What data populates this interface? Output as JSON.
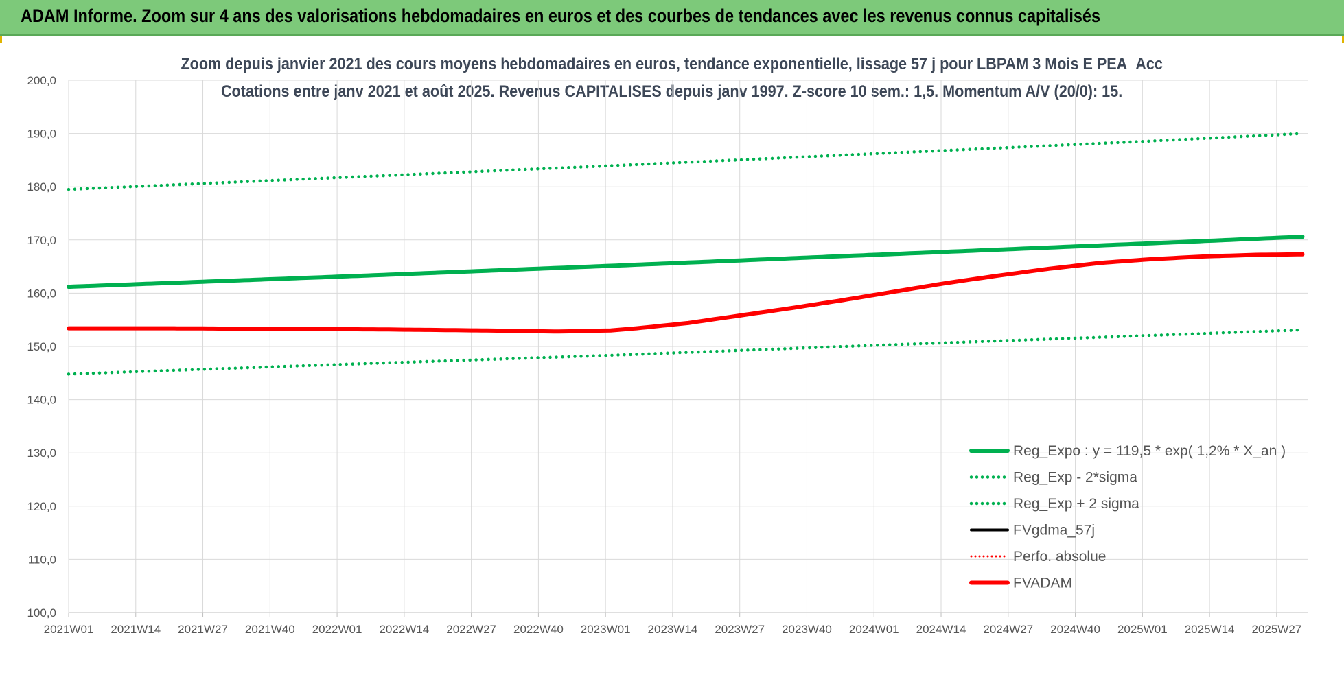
{
  "banner": {
    "title": "ADAM Informe. Zoom sur 4 ans des valorisations hebdomadaires en euros et des courbes de tendances avec les revenus connus capitalisés"
  },
  "chart_data": {
    "type": "line",
    "title": "Zoom depuis janvier 2021 des cours moyens hebdomadaires en euros, tendance exponentielle, lissage 57 j pour LBPAM 3 Mois E PEA_Acc",
    "subtitle": "Cotations entre janv 2021 et août 2025. Revenus CAPITALISES depuis janv 1997. Z-score 10 sem.: 1,5. Momentum A/V (20/0): 15.",
    "xlabel": "",
    "ylabel": "",
    "ylim": [
      100,
      200
    ],
    "yticks": [
      "100,0",
      "110,0",
      "120,0",
      "130,0",
      "140,0",
      "150,0",
      "160,0",
      "170,0",
      "180,0",
      "190,0",
      "200,0"
    ],
    "x_tick_labels": [
      "2021W01",
      "2021W14",
      "2021W27",
      "2021W40",
      "2022W01",
      "2022W14",
      "2022W27",
      "2022W40",
      "2023W01",
      "2023W14",
      "2023W27",
      "2023W40",
      "2024W01",
      "2024W14",
      "2024W27",
      "2024W40",
      "2025W01",
      "2025W14",
      "2025W27"
    ],
    "weeks_total": 240,
    "grid": true,
    "legend_position": "bottom-right",
    "series": [
      {
        "name": "Reg_Expo : y = 119,5 * exp( 1,2% *  X_an )",
        "color": "#00b050",
        "style": "solid-thick",
        "x_weeks": [
          0,
          52,
          104,
          156,
          208,
          239
        ],
        "values": [
          161.2,
          163.1,
          165.1,
          167.2,
          169.3,
          170.6
        ]
      },
      {
        "name": "Reg_Exp - 2*sigma",
        "color": "#00b050",
        "style": "dotted",
        "x_weeks": [
          0,
          52,
          104,
          156,
          208,
          239
        ],
        "values": [
          144.8,
          146.6,
          148.3,
          150.2,
          152.0,
          153.1
        ]
      },
      {
        "name": "Reg_Exp + 2 sigma",
        "color": "#00b050",
        "style": "dotted",
        "x_weeks": [
          0,
          52,
          104,
          156,
          208,
          239
        ],
        "values": [
          179.5,
          181.7,
          183.9,
          186.2,
          188.5,
          190.0
        ]
      },
      {
        "name": "FVgdma_57j",
        "color": "#000000",
        "style": "solid",
        "x_weeks": [],
        "values": []
      },
      {
        "name": "Perfo. absolue",
        "color": "#ff0000",
        "style": "dotted-fine",
        "x_weeks": [],
        "values": []
      },
      {
        "name": "FVADAM",
        "color": "#ff0000",
        "style": "solid-thick",
        "x_weeks": [
          0,
          20,
          40,
          60,
          80,
          95,
          100,
          105,
          110,
          120,
          130,
          140,
          150,
          160,
          170,
          180,
          190,
          200,
          210,
          220,
          230,
          239
        ],
        "values": [
          153.4,
          153.4,
          153.3,
          153.2,
          153.0,
          152.8,
          152.9,
          153.0,
          153.4,
          154.4,
          155.8,
          157.2,
          158.7,
          160.3,
          161.9,
          163.3,
          164.6,
          165.7,
          166.4,
          166.9,
          167.2,
          167.3
        ]
      }
    ]
  }
}
